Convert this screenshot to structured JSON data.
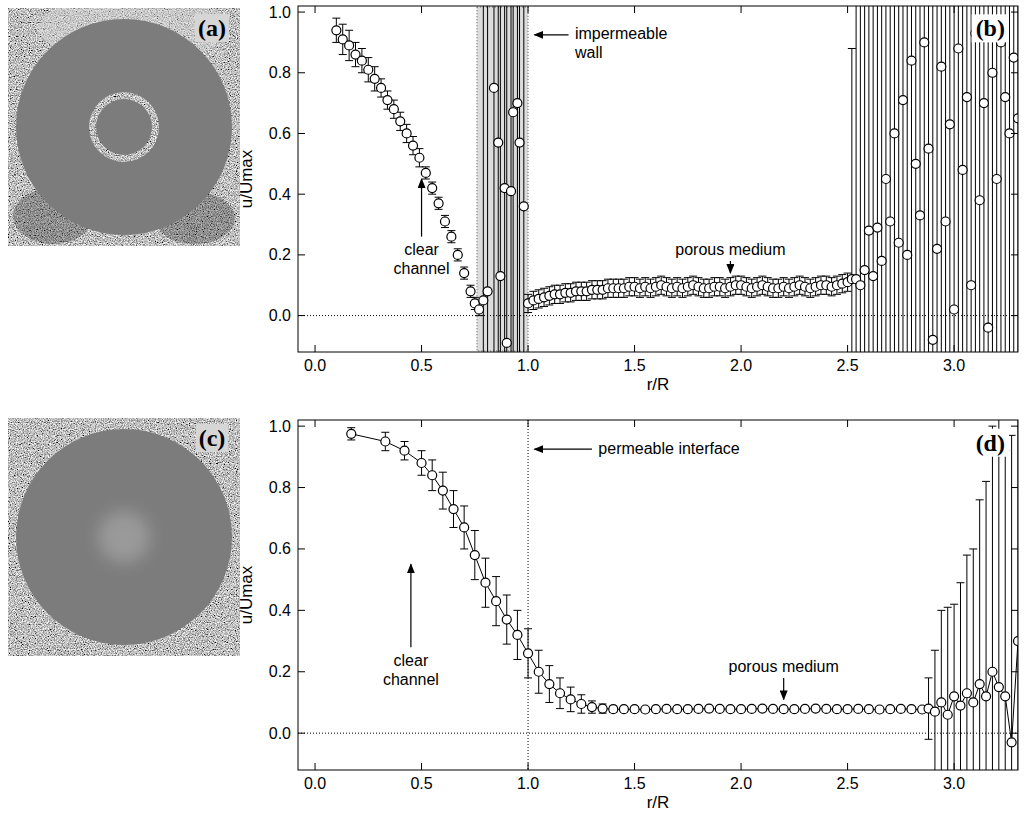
{
  "images": [
    {
      "label": "(a)"
    },
    {
      "label": "(c)"
    }
  ],
  "chart_data": [
    {
      "type": "scatter",
      "panel_label": "(b)",
      "x_label": "r/R",
      "y_label": "u/Umax",
      "xlim": [
        -0.08,
        3.3
      ],
      "ylim": [
        -0.12,
        1.02
      ],
      "xticks": [
        {
          "value": 0,
          "label": "0.0"
        },
        0.5,
        {
          "value": 1,
          "label": "1.0"
        },
        1.5,
        {
          "value": 2,
          "label": "2.0"
        },
        2.5,
        {
          "value": 3,
          "label": "3.0"
        }
      ],
      "yticks": [
        {
          "value": 0,
          "label": "0.0"
        },
        0.2,
        0.4,
        0.6,
        0.8,
        {
          "value": 1,
          "label": "1.0"
        }
      ],
      "grid": false,
      "hline": 0,
      "shaded_xrange": [
        0.76,
        1.0
      ],
      "annotations": [
        "clear channel",
        "impermeable wall",
        "porous medium"
      ],
      "series": [
        {
          "color": "#000000",
          "marker": "circle",
          "line_style": "none",
          "x": [
            0.1,
            0.13,
            0.16,
            0.19,
            0.22,
            0.25,
            0.28,
            0.31,
            0.34,
            0.37,
            0.4,
            0.43,
            0.46,
            0.49,
            0.52,
            0.55,
            0.58,
            0.61,
            0.64,
            0.67,
            0.7,
            0.73,
            0.75,
            0.77,
            0.79,
            0.81,
            0.84,
            0.86,
            0.87,
            0.89,
            0.9,
            0.92,
            0.93,
            0.95,
            0.96,
            0.98,
            1.0,
            1.025,
            1.05,
            1.075,
            1.1,
            1.125,
            1.15,
            1.175,
            1.2,
            1.225,
            1.25,
            1.275,
            1.3,
            1.325,
            1.35,
            1.375,
            1.4,
            1.425,
            1.45,
            1.475,
            1.5,
            1.525,
            1.55,
            1.575,
            1.6,
            1.625,
            1.65,
            1.675,
            1.7,
            1.725,
            1.75,
            1.775,
            1.8,
            1.825,
            1.85,
            1.875,
            1.9,
            1.925,
            1.95,
            1.975,
            2.0,
            2.025,
            2.05,
            2.075,
            2.1,
            2.125,
            2.15,
            2.175,
            2.2,
            2.225,
            2.25,
            2.275,
            2.3,
            2.325,
            2.35,
            2.375,
            2.4,
            2.425,
            2.45,
            2.475,
            2.5,
            2.52,
            2.54,
            2.56,
            2.58,
            2.6,
            2.62,
            2.64,
            2.66,
            2.68,
            2.7,
            2.72,
            2.74,
            2.76,
            2.78,
            2.8,
            2.82,
            2.84,
            2.86,
            2.88,
            2.9,
            2.92,
            2.94,
            2.96,
            2.98,
            3.0,
            3.02,
            3.04,
            3.06,
            3.08,
            3.1,
            3.12,
            3.14,
            3.16,
            3.18,
            3.2,
            3.22,
            3.24,
            3.26,
            3.28,
            3.3
          ],
          "values": [
            0.94,
            0.91,
            0.89,
            0.86,
            0.84,
            0.81,
            0.78,
            0.75,
            0.71,
            0.68,
            0.64,
            0.6,
            0.56,
            0.52,
            0.47,
            0.42,
            0.37,
            0.31,
            0.26,
            0.2,
            0.14,
            0.08,
            0.04,
            0.02,
            0.05,
            0.08,
            0.75,
            0.57,
            0.13,
            0.42,
            -0.09,
            0.41,
            0.67,
            0.7,
            0.57,
            0.36,
            0.04,
            0.05,
            0.055,
            0.06,
            0.065,
            0.07,
            0.07,
            0.075,
            0.075,
            0.08,
            0.08,
            0.08,
            0.085,
            0.085,
            0.085,
            0.09,
            0.09,
            0.09,
            0.09,
            0.095,
            0.095,
            0.09,
            0.095,
            0.09,
            0.095,
            0.1,
            0.095,
            0.09,
            0.095,
            0.09,
            0.095,
            0.1,
            0.095,
            0.09,
            0.09,
            0.095,
            0.095,
            0.09,
            0.095,
            0.1,
            0.1,
            0.095,
            0.09,
            0.095,
            0.1,
            0.095,
            0.09,
            0.09,
            0.095,
            0.09,
            0.095,
            0.1,
            0.095,
            0.09,
            0.095,
            0.1,
            0.1,
            0.095,
            0.1,
            0.105,
            0.11,
            0.12,
            0.12,
            0.1,
            0.15,
            0.28,
            0.13,
            0.29,
            0.18,
            0.45,
            0.31,
            0.6,
            0.24,
            0.71,
            0.2,
            0.84,
            0.5,
            0.33,
            0.9,
            0.55,
            -0.08,
            0.22,
            0.82,
            0.31,
            0.63,
            0.02,
            0.88,
            0.48,
            0.72,
            0.1,
            0.93,
            0.38,
            0.7,
            -0.04,
            0.8,
            0.45,
            0.9,
            0.72,
            0.6,
            0.85,
            0.65
          ],
          "errors": [
            0.04,
            0.05,
            0.05,
            0.04,
            0.04,
            0.04,
            0.04,
            0.03,
            0.03,
            0.03,
            0.03,
            0.03,
            0.03,
            0.03,
            0.02,
            0.02,
            0.02,
            0.02,
            0.02,
            0.02,
            0.02,
            0.02,
            0.02,
            0.02,
            1.5,
            1.5,
            1.5,
            1.5,
            1.5,
            1.5,
            1.5,
            1.5,
            1.5,
            1.5,
            1.5,
            1.5,
            0.03,
            0.03,
            0.03,
            0.03,
            0.03,
            0.03,
            0.03,
            0.03,
            0.03,
            0.03,
            0.03,
            0.03,
            0.03,
            0.03,
            0.03,
            0.03,
            0.03,
            0.03,
            0.03,
            0.03,
            0.03,
            0.03,
            0.03,
            0.03,
            0.03,
            0.03,
            0.03,
            0.03,
            0.03,
            0.03,
            0.03,
            0.03,
            0.03,
            0.03,
            0.03,
            0.03,
            0.03,
            0.03,
            0.03,
            0.03,
            0.03,
            0.03,
            0.03,
            0.03,
            0.03,
            0.03,
            0.03,
            0.03,
            0.03,
            0.03,
            0.03,
            0.03,
            0.03,
            0.03,
            0.03,
            0.03,
            0.03,
            0.03,
            0.03,
            0.03,
            0.03,
            0.76,
            1.5,
            1.5,
            1.5,
            1.5,
            1.5,
            1.5,
            1.5,
            1.5,
            1.5,
            1.5,
            1.5,
            1.5,
            1.5,
            1.5,
            1.5,
            1.5,
            1.5,
            1.5,
            1.5,
            1.5,
            1.5,
            1.5,
            1.5,
            1.5,
            1.5,
            1.5,
            1.5,
            1.5,
            1.5,
            1.5,
            1.5,
            1.5,
            1.5,
            1.5,
            1.5,
            1.5,
            1.5,
            1.5,
            1.5
          ]
        }
      ]
    },
    {
      "type": "scatter",
      "panel_label": "(d)",
      "x_label": "r/R",
      "y_label": "u/Umax",
      "xlim": [
        -0.08,
        3.3
      ],
      "ylim": [
        -0.12,
        1.02
      ],
      "xticks": [
        {
          "value": 0,
          "label": "0.0"
        },
        0.5,
        {
          "value": 1,
          "label": "1.0"
        },
        1.5,
        {
          "value": 2,
          "label": "2.0"
        },
        2.5,
        {
          "value": 3,
          "label": "3.0"
        }
      ],
      "yticks": [
        {
          "value": 0,
          "label": "0.0"
        },
        0.2,
        0.4,
        0.6,
        0.8,
        {
          "value": 1,
          "label": "1.0"
        }
      ],
      "grid": false,
      "hline": 0,
      "vline": 1.0,
      "annotations": [
        "clear channel",
        "permeable interface",
        "porous medium"
      ],
      "series": [
        {
          "color": "#000000",
          "marker": "circle",
          "line_style": "solid",
          "x": [
            0.17,
            0.33,
            0.42,
            0.5,
            0.55,
            0.6,
            0.65,
            0.7,
            0.75,
            0.8,
            0.85,
            0.9,
            0.95,
            1.0,
            1.05,
            1.1,
            1.15,
            1.2,
            1.25,
            1.3,
            1.35,
            1.4,
            1.45,
            1.5,
            1.55,
            1.6,
            1.65,
            1.7,
            1.75,
            1.8,
            1.85,
            1.9,
            1.95,
            2.0,
            2.05,
            2.1,
            2.15,
            2.2,
            2.25,
            2.3,
            2.35,
            2.4,
            2.45,
            2.5,
            2.55,
            2.6,
            2.65,
            2.7,
            2.75,
            2.8,
            2.85,
            2.88,
            2.91,
            2.94,
            2.97,
            3.0,
            3.03,
            3.06,
            3.09,
            3.12,
            3.15,
            3.18,
            3.21,
            3.24,
            3.27,
            3.3
          ],
          "values": [
            0.975,
            0.95,
            0.92,
            0.88,
            0.84,
            0.79,
            0.73,
            0.67,
            0.58,
            0.49,
            0.43,
            0.37,
            0.32,
            0.26,
            0.2,
            0.16,
            0.13,
            0.11,
            0.095,
            0.085,
            0.08,
            0.078,
            0.078,
            0.078,
            0.077,
            0.078,
            0.079,
            0.078,
            0.078,
            0.079,
            0.08,
            0.079,
            0.078,
            0.078,
            0.079,
            0.08,
            0.079,
            0.078,
            0.078,
            0.079,
            0.08,
            0.079,
            0.078,
            0.078,
            0.079,
            0.078,
            0.077,
            0.078,
            0.079,
            0.078,
            0.077,
            0.08,
            0.07,
            0.1,
            0.06,
            0.12,
            0.09,
            0.13,
            0.1,
            0.16,
            0.12,
            0.2,
            0.15,
            0.12,
            -0.03,
            0.3
          ],
          "errors": [
            0.02,
            0.03,
            0.03,
            0.04,
            0.05,
            0.06,
            0.06,
            0.07,
            0.08,
            0.08,
            0.08,
            0.08,
            0.08,
            0.08,
            0.07,
            0.06,
            0.05,
            0.04,
            0.03,
            0.02,
            0.015,
            0.01,
            0.008,
            0.008,
            0.008,
            0.008,
            0.008,
            0.008,
            0.008,
            0.008,
            0.008,
            0.008,
            0.008,
            0.008,
            0.008,
            0.008,
            0.008,
            0.008,
            0.008,
            0.008,
            0.008,
            0.008,
            0.008,
            0.008,
            0.008,
            0.008,
            0.008,
            0.008,
            0.008,
            0.008,
            0.008,
            0.1,
            0.2,
            0.3,
            0.35,
            0.3,
            0.4,
            0.45,
            0.5,
            0.6,
            0.7,
            0.8,
            0.9,
            0.8,
            1.0,
            1.0
          ]
        }
      ]
    }
  ]
}
